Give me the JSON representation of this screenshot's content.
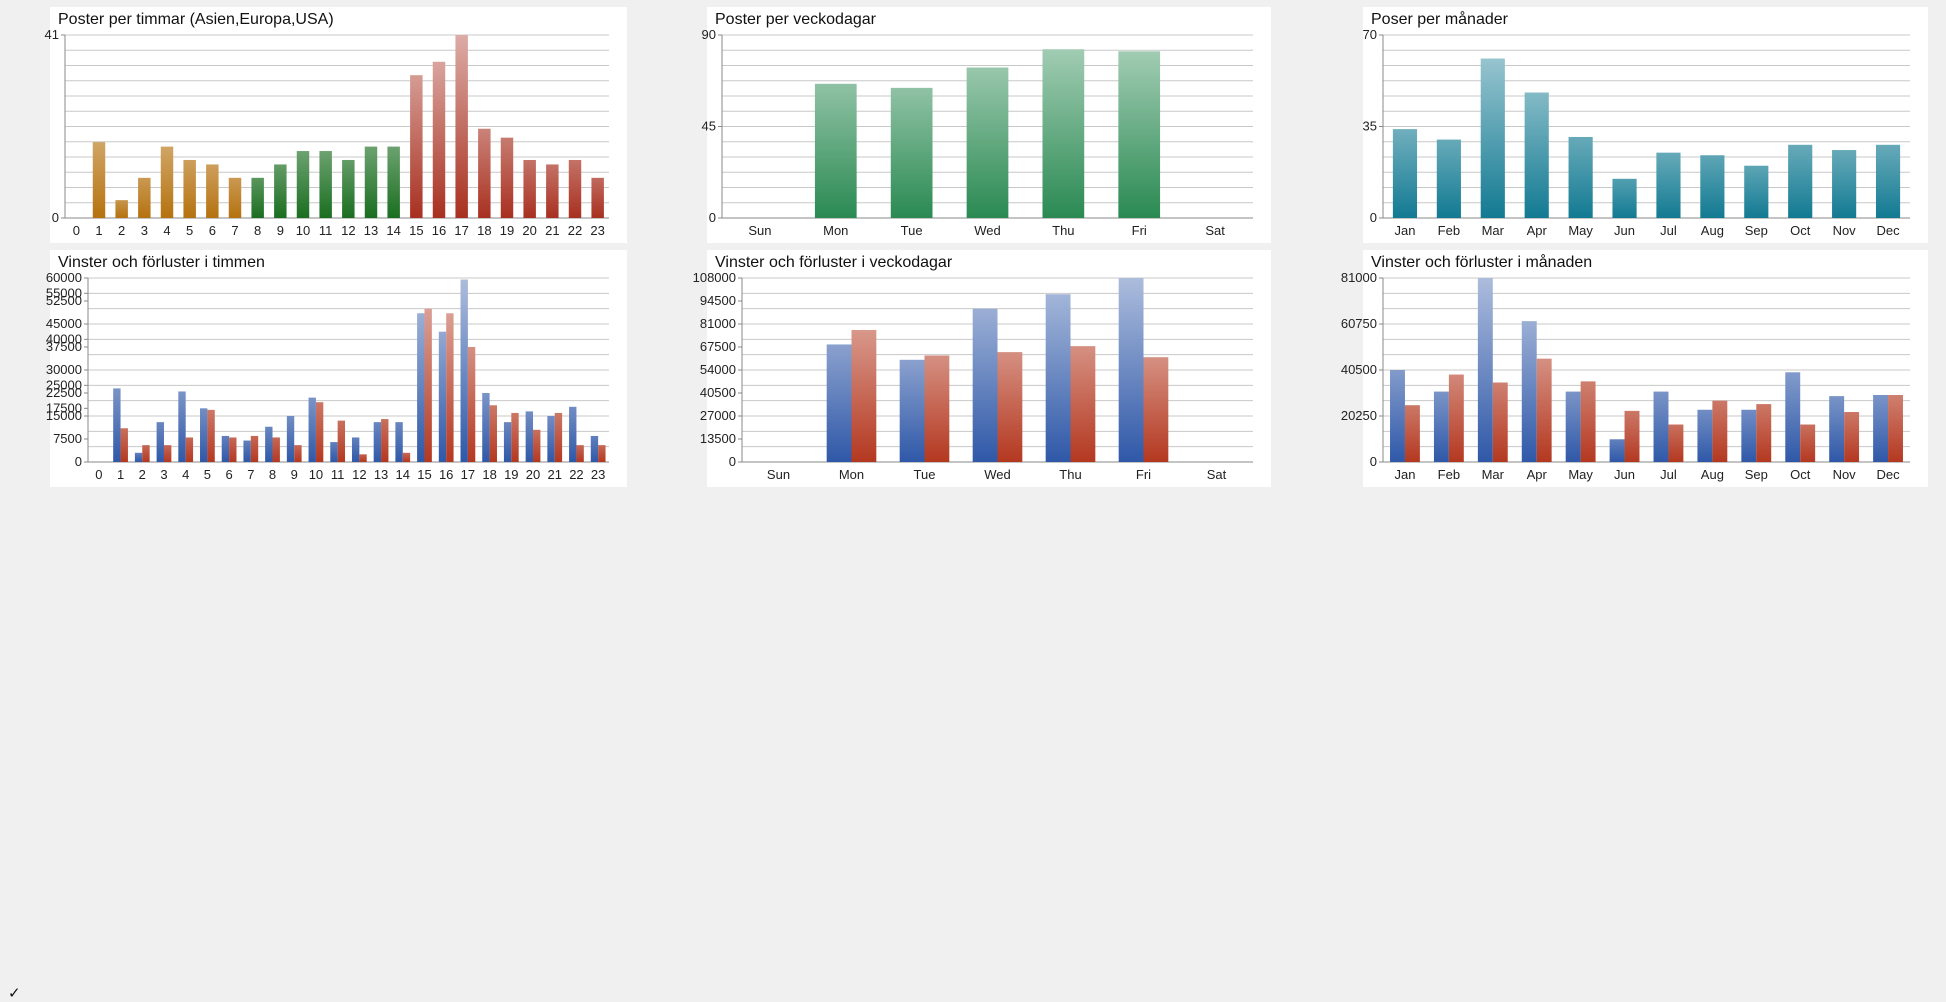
{
  "status": {
    "check_glyph": "✓"
  },
  "chart_data": [
    {
      "id": "posts-hour",
      "type": "bar",
      "title": "Poster per timmar (Asien,Europa,USA)",
      "categories": [
        "0",
        "1",
        "2",
        "3",
        "4",
        "5",
        "6",
        "7",
        "8",
        "9",
        "10",
        "11",
        "12",
        "13",
        "14",
        "15",
        "16",
        "17",
        "18",
        "19",
        "20",
        "21",
        "22",
        "23"
      ],
      "values": [
        0,
        17,
        4,
        9,
        16,
        13,
        12,
        9,
        9,
        12,
        15,
        15,
        13,
        16,
        16,
        32,
        35,
        41,
        20,
        18,
        13,
        12,
        13,
        9
      ],
      "ylim": [
        0,
        41
      ],
      "yticks": [
        0,
        41
      ],
      "bar_colors": [
        "#b5720f",
        "#b5720f",
        "#b5720f",
        "#b5720f",
        "#b5720f",
        "#b5720f",
        "#b5720f",
        "#b5720f",
        "#1a6e20",
        "#1a6e20",
        "#1a6e20",
        "#1a6e20",
        "#1a6e20",
        "#1a6e20",
        "#1a6e20",
        "#a83020",
        "#a83020",
        "#a83020",
        "#a83020",
        "#a83020",
        "#a83020",
        "#a83020",
        "#a83020",
        "#a83020"
      ],
      "grid": true
    },
    {
      "id": "posts-weekday",
      "type": "bar",
      "title": "Poster per veckodagar",
      "categories": [
        "Sun",
        "Mon",
        "Tue",
        "Wed",
        "Thu",
        "Fri",
        "Sat"
      ],
      "values": [
        0,
        66,
        64,
        74,
        83,
        82,
        0
      ],
      "ylim": [
        0,
        90
      ],
      "yticks": [
        0,
        45,
        90
      ],
      "color": "#2a8a52",
      "grid": true
    },
    {
      "id": "posts-month",
      "type": "bar",
      "title": "Poser per månader",
      "categories": [
        "Jan",
        "Feb",
        "Mar",
        "Apr",
        "May",
        "Jun",
        "Jul",
        "Aug",
        "Sep",
        "Oct",
        "Nov",
        "Dec"
      ],
      "values": [
        34,
        30,
        61,
        48,
        31,
        15,
        25,
        24,
        20,
        28,
        26,
        28
      ],
      "ylim": [
        0,
        70
      ],
      "yticks": [
        0,
        35,
        70
      ],
      "color": "#127a92",
      "grid": true
    },
    {
      "id": "winloss-hour",
      "type": "bar",
      "title": "Vinster och förluster i timmen",
      "categories": [
        "0",
        "1",
        "2",
        "3",
        "4",
        "5",
        "6",
        "7",
        "8",
        "9",
        "10",
        "11",
        "12",
        "13",
        "14",
        "15",
        "16",
        "17",
        "18",
        "19",
        "20",
        "21",
        "22",
        "23"
      ],
      "series": [
        {
          "values": [
            0,
            24000,
            3000,
            13000,
            23000,
            17500,
            8500,
            7000,
            11500,
            15000,
            21000,
            6500,
            8000,
            13000,
            13000,
            48500,
            42500,
            59500,
            22500,
            13000,
            16500,
            15000,
            18000,
            8500
          ]
        },
        {
          "values": [
            0,
            11000,
            5500,
            5500,
            8000,
            17000,
            8000,
            8500,
            8000,
            5500,
            19500,
            13500,
            2500,
            14000,
            3000,
            50000,
            48500,
            37500,
            18500,
            16000,
            10500,
            16000,
            5500,
            5500
          ]
        }
      ],
      "ylim": [
        0,
        60000
      ],
      "yticks": [
        0,
        7500,
        15000,
        17500,
        22500,
        25000,
        30000,
        37500,
        40000,
        45000,
        52500,
        55000,
        60000
      ],
      "colors": [
        "#2f58a8",
        "#b43820"
      ],
      "grid": true
    },
    {
      "id": "winloss-weekday",
      "type": "bar",
      "title": "Vinster och förluster i veckodagar",
      "categories": [
        "Sun",
        "Mon",
        "Tue",
        "Wed",
        "Thu",
        "Fri",
        "Sat"
      ],
      "series": [
        {
          "values": [
            0,
            69000,
            60000,
            90000,
            98500,
            108000,
            0
          ]
        },
        {
          "values": [
            0,
            77500,
            62500,
            64500,
            68000,
            61500,
            0
          ]
        }
      ],
      "ylim": [
        0,
        108000
      ],
      "yticks": [
        0,
        13500,
        27000,
        40500,
        54000,
        67500,
        81000,
        94500,
        108000
      ],
      "colors": [
        "#2f58a8",
        "#b43820"
      ],
      "grid": true
    },
    {
      "id": "winloss-month",
      "type": "bar",
      "title": "Vinster och förluster i månaden",
      "categories": [
        "Jan",
        "Feb",
        "Mar",
        "Apr",
        "May",
        "Jun",
        "Jul",
        "Aug",
        "Sep",
        "Oct",
        "Nov",
        "Dec"
      ],
      "series": [
        {
          "values": [
            40500,
            31000,
            81000,
            62000,
            31000,
            10000,
            31000,
            23000,
            23000,
            39500,
            29000,
            29500
          ]
        },
        {
          "values": [
            25000,
            38500,
            35000,
            45500,
            35500,
            22500,
            16500,
            27000,
            25500,
            16500,
            22000,
            29500
          ]
        }
      ],
      "ylim": [
        0,
        81000
      ],
      "yticks": [
        0,
        20250,
        40500,
        60750,
        81000
      ],
      "colors": [
        "#2f58a8",
        "#b43820"
      ],
      "grid": true
    }
  ]
}
